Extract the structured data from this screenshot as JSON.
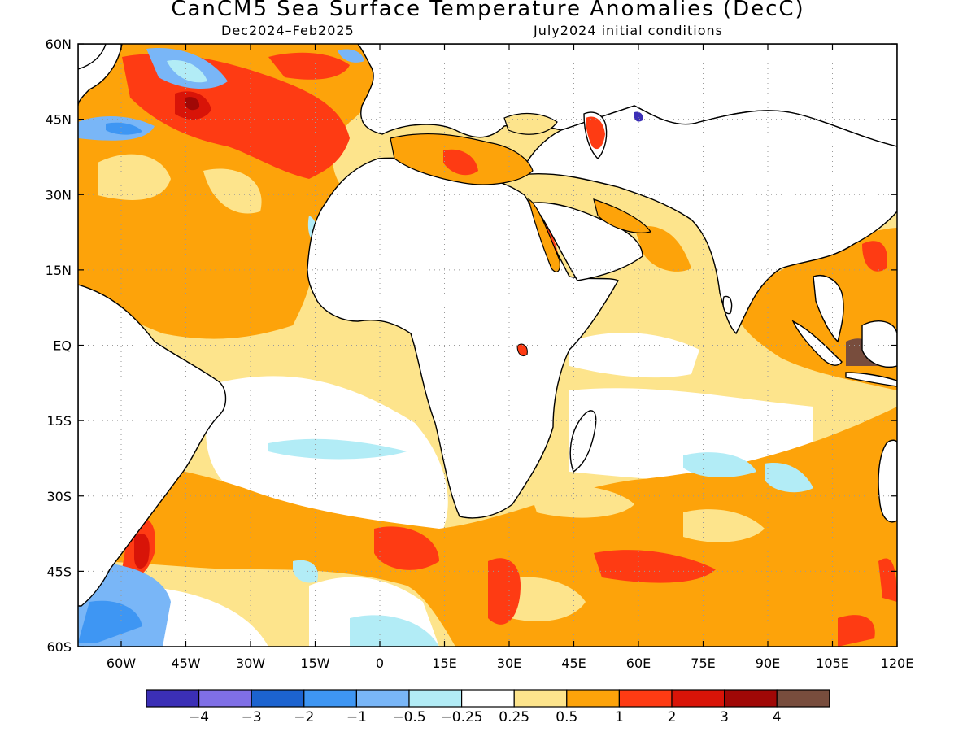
{
  "title": "CanCM5 Sea Surface Temperature Anomalies (DecC)",
  "subtitle_left": "Dec2024–Feb2025",
  "subtitle_right": "July2024 initial conditions",
  "map": {
    "lon_range": [
      -70,
      120
    ],
    "lat_range": [
      -60,
      60
    ],
    "lat_ticks": [
      "60N",
      "45N",
      "30N",
      "15N",
      "EQ",
      "15S",
      "30S",
      "45S",
      "60S"
    ],
    "lon_ticks": [
      "60W",
      "45W",
      "30W",
      "15W",
      "0",
      "15E",
      "30E",
      "45E",
      "60E",
      "75E",
      "90E",
      "105E",
      "120E"
    ],
    "grid": true,
    "background_color": "#ffffff",
    "land_color": "#ffffff",
    "coast_color": "#000000"
  },
  "colorbar": {
    "colors": [
      "#3b2fb6",
      "#7f6fe6",
      "#1c63cf",
      "#3e96f3",
      "#79b6f7",
      "#b2ecf6",
      "#ffffff",
      "#fde48c",
      "#fda30a",
      "#fe3b13",
      "#d81408",
      "#a00806",
      "#784d3d"
    ],
    "labels": [
      "−4",
      "−3",
      "−2",
      "−1",
      "−0.5",
      "−0.25",
      "0.25",
      "0.5",
      "1",
      "2",
      "3",
      "4"
    ]
  }
}
